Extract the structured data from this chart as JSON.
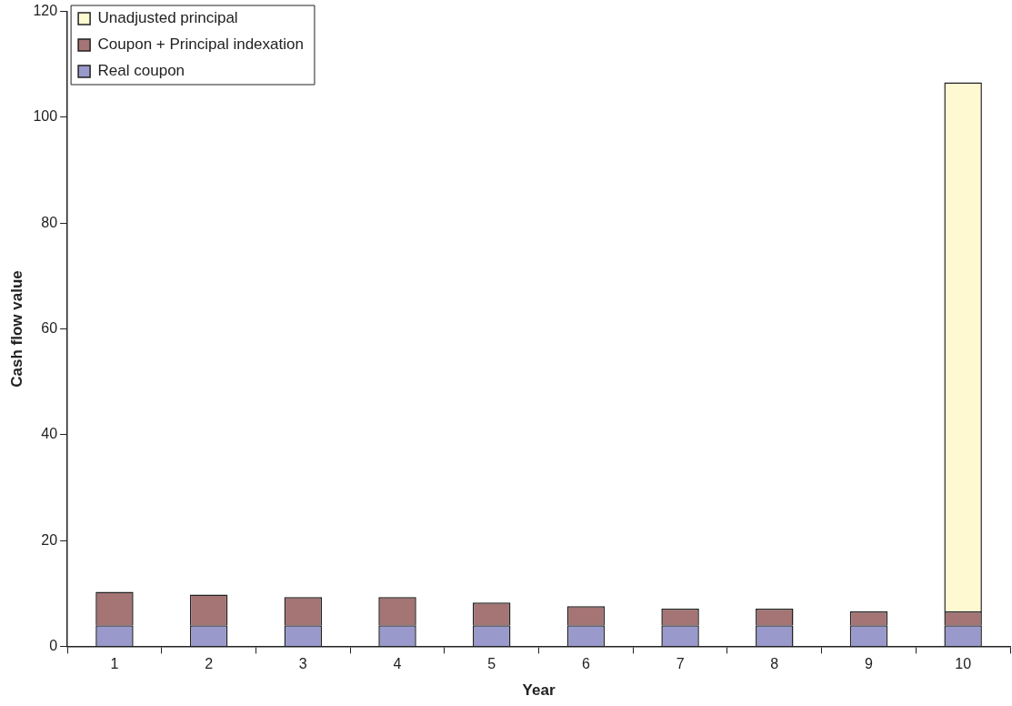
{
  "chart_data": {
    "type": "bar",
    "xlabel": "Year",
    "ylabel": "Cash flow value",
    "categories": [
      "1",
      "2",
      "3",
      "4",
      "5",
      "6",
      "7",
      "8",
      "9",
      "10"
    ],
    "stacked": true,
    "series": [
      {
        "name": "Real coupon",
        "color": "#9999cc",
        "values": [
          4,
          4,
          4,
          4,
          4,
          4,
          4,
          4,
          4,
          4
        ]
      },
      {
        "name": "Coupon + Principal indexation",
        "color": "#a57474",
        "values": [
          6.3,
          5.8,
          5.3,
          5.3,
          4.3,
          3.6,
          3.1,
          3.1,
          2.6,
          2.6
        ]
      },
      {
        "name": "Unadjusted principal",
        "color": "#fff9d2",
        "values": [
          null,
          null,
          null,
          null,
          null,
          null,
          null,
          null,
          null,
          100
        ]
      }
    ],
    "ylim": [
      0,
      120
    ],
    "yticks": [
      0,
      20,
      40,
      60,
      80,
      100,
      120
    ],
    "grid": false,
    "legend": "top left"
  }
}
